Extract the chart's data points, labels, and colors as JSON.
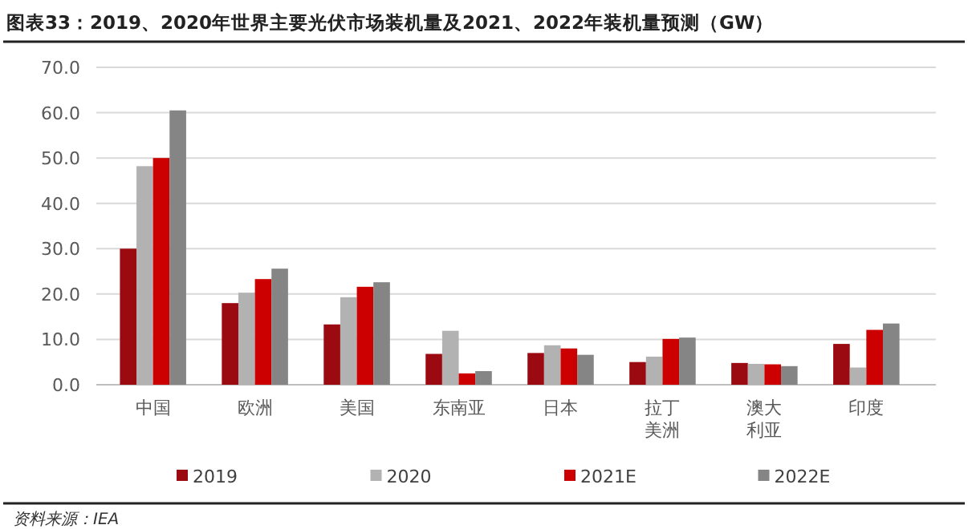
{
  "chart_data": {
    "type": "bar",
    "title": "图表33：2019、2020年世界主要光伏市场装机量及2021、2022年装机量预测（GW）",
    "categories": [
      "中国",
      "欧洲",
      "美国",
      "东南亚",
      "日本",
      "拉丁美洲",
      "澳大利亚",
      "印度"
    ],
    "series": [
      {
        "name": "2019",
        "color": "#9b0a10",
        "values": [
          30,
          18,
          13.3,
          6.8,
          7,
          5,
          4.8,
          9
        ]
      },
      {
        "name": "2020",
        "color": "#b2b2b2",
        "values": [
          48.2,
          20.3,
          19.3,
          11.9,
          8.7,
          6.2,
          4.6,
          3.8
        ]
      },
      {
        "name": "2021E",
        "color": "#cc0000",
        "values": [
          50,
          23.3,
          21.6,
          2.5,
          8,
          10.1,
          4.5,
          12.1
        ]
      },
      {
        "name": "2022E",
        "color": "#858585",
        "values": [
          60.5,
          25.6,
          22.6,
          3,
          6.6,
          10.4,
          4.1,
          13.5
        ]
      }
    ],
    "ylim": [
      0,
      70
    ],
    "yticks": [
      {
        "value": 0,
        "label": "0.0"
      },
      {
        "value": 10,
        "label": "10.0"
      },
      {
        "value": 20,
        "label": "20.0"
      },
      {
        "value": 30,
        "label": "30.0"
      },
      {
        "value": 40,
        "label": "40.0"
      },
      {
        "value": 50,
        "label": "50.0"
      },
      {
        "value": 60,
        "label": "60.0"
      },
      {
        "value": 70,
        "label": "70.0"
      }
    ],
    "grid": "y",
    "legend": "bottom",
    "annotations": [
      "资料来源：IEA"
    ]
  }
}
